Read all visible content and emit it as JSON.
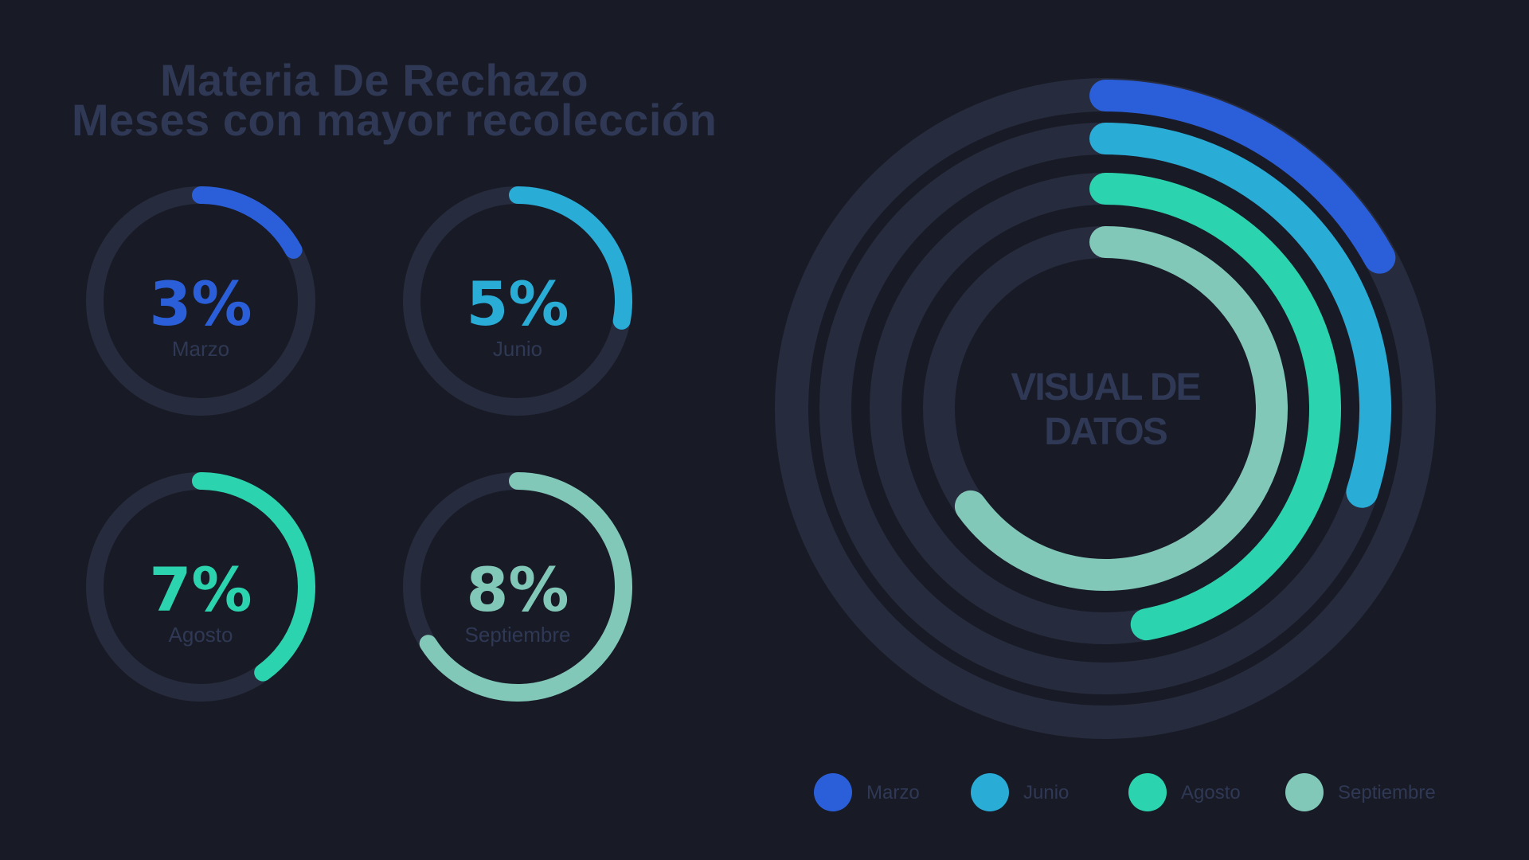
{
  "title": {
    "line1": "Materia De Rechazo",
    "line2": "Meses con mayor recolección"
  },
  "center_label": {
    "line1": "VISUAL DE",
    "line2": "DATOS"
  },
  "colors": {
    "background": "#181b26",
    "track": "#262b3d",
    "muted_text": "#2f3854",
    "marzo": "#2b5fd9",
    "junio": "#29acd6",
    "agosto": "#2bd4ae",
    "septiembre": "#82c8b8"
  },
  "chart_data": [
    {
      "type": "radial-progress",
      "title": "Materia De Rechazo — Meses con mayor recolección",
      "categories": [
        "Marzo",
        "Junio",
        "Agosto",
        "Septiembre"
      ],
      "values": [
        3,
        5,
        7,
        8
      ],
      "value_labels": [
        "3%",
        "5%",
        "7%",
        "8%"
      ],
      "arc_fraction_shown": [
        0.17,
        0.28,
        0.4,
        0.66
      ],
      "unit": "%"
    },
    {
      "type": "radial-bar",
      "center_text": "VISUAL DE DATOS",
      "categories": [
        "Marzo",
        "Junio",
        "Agosto",
        "Septiembre"
      ],
      "arc_fraction_shown": [
        0.17,
        0.3,
        0.47,
        0.65
      ],
      "legend": [
        "Marzo",
        "Junio",
        "Agosto",
        "Septiembre"
      ],
      "legend_position": "bottom"
    }
  ]
}
